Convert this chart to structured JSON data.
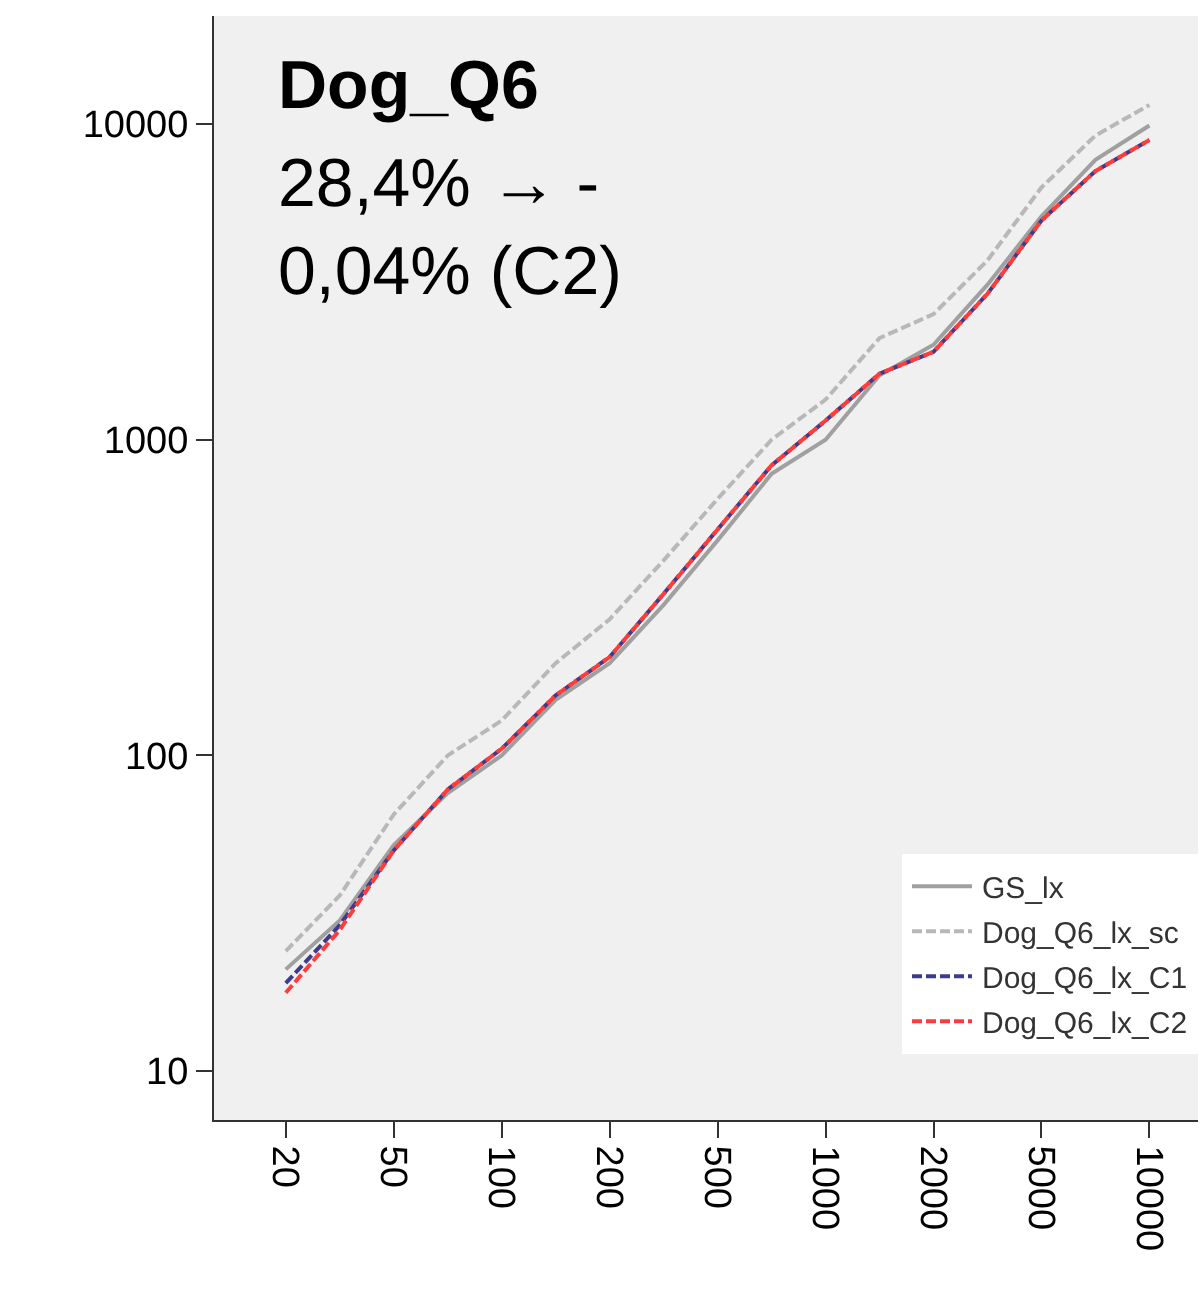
{
  "chart_data": {
    "type": "line",
    "annotations": [
      "Dog_Q6",
      "28,4% → -\n0,04% (C2)"
    ],
    "categories": [
      "20",
      null,
      "50",
      null,
      "100",
      null,
      "200",
      null,
      "500",
      null,
      "1000",
      null,
      "2000",
      null,
      "5000",
      null,
      "10000"
    ],
    "series": [
      {
        "name": "GS_lx",
        "color": "#a0a0a0",
        "line_style": "solid",
        "values": [
          21,
          30,
          52,
          76,
          100,
          150,
          196,
          300,
          480,
          780,
          1000,
          1600,
          2000,
          3100,
          5100,
          7700,
          9900
        ]
      },
      {
        "name": "Dog_Q6_lx_sc",
        "color": "#b8b8b8",
        "line_style": "dashed",
        "values": [
          24,
          36,
          65,
          100,
          129,
          196,
          270,
          415,
          650,
          1000,
          1340,
          2100,
          2500,
          3700,
          6300,
          9200,
          11500
        ]
      },
      {
        "name": "Dog_Q6_lx_C1",
        "color": "#3c3c8c",
        "line_style": "dashed",
        "values": [
          19,
          29,
          50,
          78,
          105,
          155,
          205,
          325,
          520,
          830,
          1150,
          1620,
          1900,
          2900,
          4950,
          7100,
          8900
        ]
      },
      {
        "name": "Dog_Q6_lx_C2",
        "color": "#ff3c3c",
        "line_style": "dashed",
        "values": [
          17.7,
          28,
          50,
          78,
          105,
          155,
          205,
          325,
          520,
          830,
          1150,
          1620,
          1900,
          2900,
          4950,
          7100,
          8900
        ]
      }
    ],
    "log": "y",
    "ylim": [
      7,
      22000
    ],
    "yticks": [
      10,
      100,
      1000,
      10000
    ],
    "grid": false,
    "legend": "bottom right",
    "marker": "none"
  }
}
